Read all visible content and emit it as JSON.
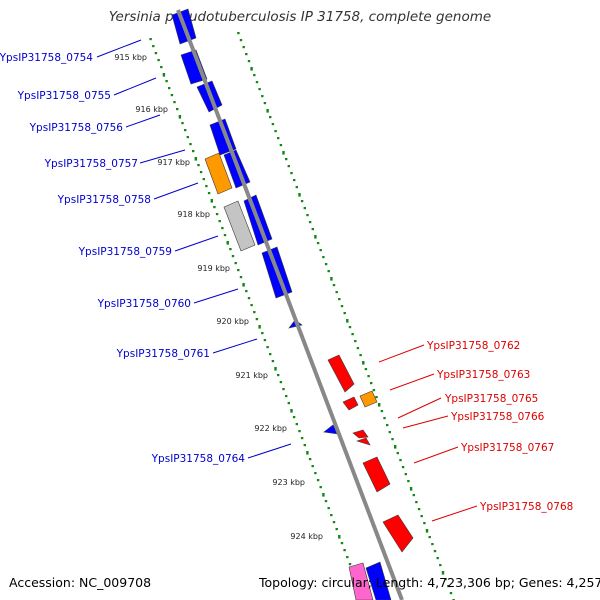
{
  "title": "Yersinia pseudotuberculosis IP 31758, complete genome",
  "footer": {
    "accession": "Accession: NC_009708",
    "summary": "Topology: circular; Length: 4,723,306 bp; Genes: 4,257"
  },
  "colors": {
    "forward_label": "#0000cc",
    "reverse_label": "#dd0000",
    "backbone": "#888888",
    "ticks": "#118811",
    "gene_blue": "#0000ff",
    "gene_orange": "#ff9900",
    "gene_gray": "#c4c4c4",
    "gene_red": "#ff0000",
    "gene_pink": "#ff66cc"
  },
  "kbp_labels": [
    "915 kbp",
    "916 kbp",
    "917 kbp",
    "918 kbp",
    "919 kbp",
    "920 kbp",
    "921 kbp",
    "922 kbp",
    "923 kbp",
    "924 kbp"
  ],
  "genes_left": [
    "YpsIP31758_0754",
    "YpsIP31758_0755",
    "YpsIP31758_0756",
    "YpsIP31758_0757",
    "YpsIP31758_0758",
    "YpsIP31758_0759",
    "YpsIP31758_0760",
    "YpsIP31758_0761",
    "YpsIP31758_0764"
  ],
  "genes_right": [
    "YpsIP31758_0762",
    "YpsIP31758_0763",
    "YpsIP31758_0765",
    "YpsIP31758_0766",
    "YpsIP31758_0767",
    "YpsIP31758_0768"
  ]
}
